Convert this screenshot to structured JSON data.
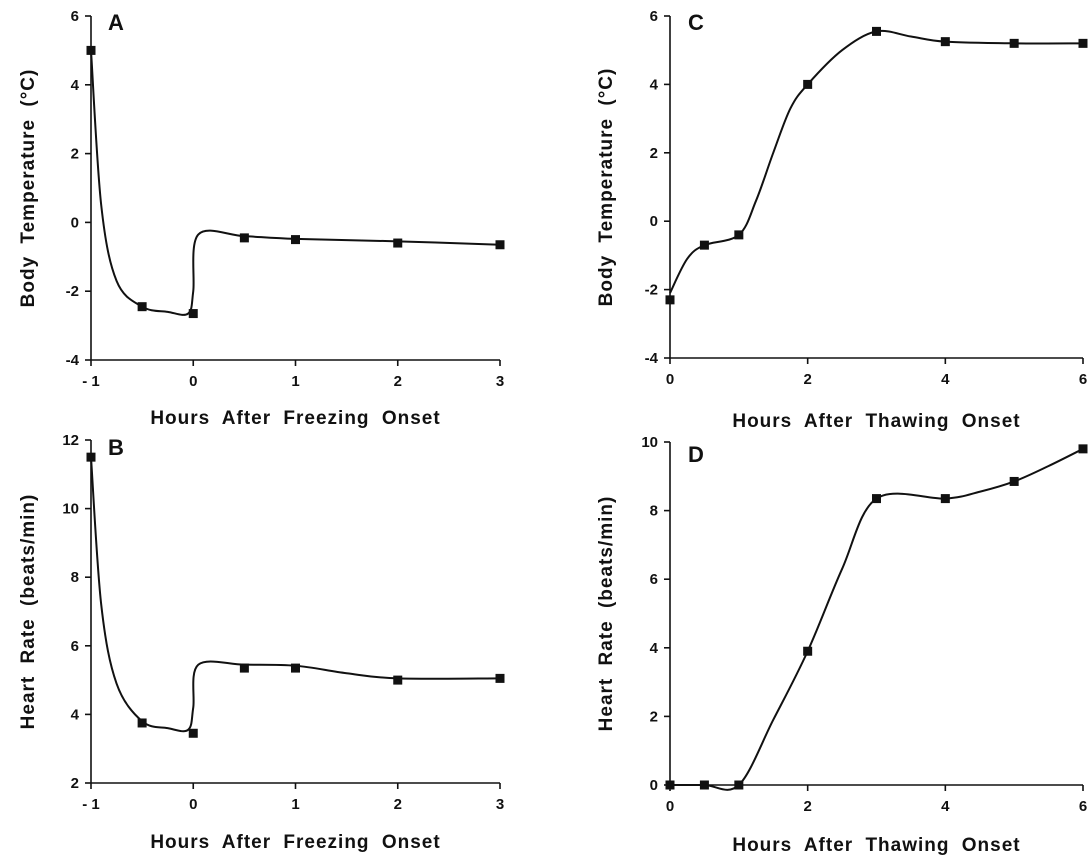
{
  "colors": {
    "ink": "#111111",
    "background": "#ffffff"
  },
  "chart_data": [
    {
      "id": "A",
      "type": "line",
      "panel_label": "A",
      "xlabel": "Hours After Freezing Onset",
      "ylabel": "Body Temperature (°C)",
      "xlim": [
        -1,
        3
      ],
      "ylim": [
        -4,
        6
      ],
      "x_ticks": [
        -1,
        0,
        1,
        2,
        3
      ],
      "x_tick_labels": [
        "- 1",
        "0",
        "1",
        "2",
        "3"
      ],
      "y_ticks": [
        -4,
        -2,
        0,
        2,
        4,
        6
      ],
      "y_tick_labels": [
        "-4",
        "-2",
        "0",
        "2",
        "4",
        "6"
      ],
      "grid": false,
      "points": {
        "x": [
          -1,
          -0.5,
          0,
          0.5,
          1,
          2,
          3
        ],
        "y": [
          5.0,
          -2.45,
          -2.65,
          -0.45,
          -0.5,
          -0.6,
          -0.65
        ]
      },
      "curve": {
        "x": [
          -1,
          -0.9,
          -0.75,
          -0.5,
          -0.25,
          -0.05,
          0,
          0.05,
          0.5,
          1,
          2,
          3
        ],
        "y": [
          5.0,
          0.5,
          -1.7,
          -2.45,
          -2.6,
          -2.65,
          -2.0,
          -0.35,
          -0.4,
          -0.48,
          -0.55,
          -0.65
        ]
      }
    },
    {
      "id": "B",
      "type": "line",
      "panel_label": "B",
      "xlabel": "Hours After Freezing Onset",
      "ylabel": "Heart Rate (beats/min)",
      "xlim": [
        -1,
        3
      ],
      "ylim": [
        2,
        12
      ],
      "x_ticks": [
        -1,
        0,
        1,
        2,
        3
      ],
      "x_tick_labels": [
        "- 1",
        "0",
        "1",
        "2",
        "3"
      ],
      "y_ticks": [
        2,
        4,
        6,
        8,
        10,
        12
      ],
      "y_tick_labels": [
        "2",
        "4",
        "6",
        "8",
        "10",
        "12"
      ],
      "grid": false,
      "points": {
        "x": [
          -1,
          -0.5,
          0,
          0.5,
          1,
          2,
          3
        ],
        "y": [
          11.5,
          3.75,
          3.45,
          5.35,
          5.35,
          5.0,
          5.05
        ]
      },
      "curve": {
        "x": [
          -1,
          -0.9,
          -0.75,
          -0.5,
          -0.25,
          -0.05,
          0,
          0.05,
          0.5,
          1,
          1.5,
          2,
          3
        ],
        "y": [
          11.5,
          7.2,
          4.9,
          3.8,
          3.6,
          3.55,
          4.2,
          5.45,
          5.45,
          5.42,
          5.2,
          5.05,
          5.05
        ]
      }
    },
    {
      "id": "C",
      "type": "line",
      "panel_label": "C",
      "xlabel": "Hours After Thawing Onset",
      "ylabel": "Body Temperature (°C)",
      "xlim": [
        0,
        6
      ],
      "ylim": [
        -4,
        6
      ],
      "x_ticks": [
        0,
        2,
        4,
        6
      ],
      "x_tick_labels": [
        "0",
        "2",
        "4",
        "6"
      ],
      "y_ticks": [
        -4,
        -2,
        0,
        2,
        4,
        6
      ],
      "y_tick_labels": [
        "-4",
        "-2",
        "0",
        "2",
        "4",
        "6"
      ],
      "grid": false,
      "points": {
        "x": [
          0,
          0.5,
          1,
          2,
          3,
          4,
          5,
          6
        ],
        "y": [
          -2.3,
          -0.7,
          -0.4,
          4.0,
          5.55,
          5.25,
          5.2,
          5.2
        ]
      },
      "curve": {
        "x": [
          0,
          0.25,
          0.5,
          1,
          1.25,
          1.5,
          1.75,
          2,
          2.5,
          3,
          3.5,
          4,
          5,
          6
        ],
        "y": [
          -2.1,
          -1.1,
          -0.7,
          -0.4,
          0.6,
          2.0,
          3.3,
          4.0,
          5.0,
          5.55,
          5.4,
          5.25,
          5.2,
          5.2
        ]
      }
    },
    {
      "id": "D",
      "type": "line",
      "panel_label": "D",
      "xlabel": "Hours After Thawing Onset",
      "ylabel": "Heart Rate (beats/min)",
      "xlim": [
        0,
        6
      ],
      "ylim": [
        0,
        10
      ],
      "x_ticks": [
        0,
        2,
        4,
        6
      ],
      "x_tick_labels": [
        "0",
        "2",
        "4",
        "6"
      ],
      "y_ticks": [
        0,
        2,
        4,
        6,
        8,
        10
      ],
      "y_tick_labels": [
        "0",
        "2",
        "4",
        "6",
        "8",
        "10"
      ],
      "grid": false,
      "points": {
        "x": [
          0,
          0.5,
          1,
          2,
          3,
          4,
          5,
          6
        ],
        "y": [
          0,
          0,
          0,
          3.9,
          8.35,
          8.35,
          8.85,
          9.8
        ]
      },
      "curve": {
        "x": [
          0,
          0.5,
          1,
          1.5,
          2,
          2.5,
          3,
          4,
          4.5,
          5,
          5.5,
          6
        ],
        "y": [
          0,
          0,
          0,
          1.9,
          3.9,
          6.3,
          8.35,
          8.35,
          8.55,
          8.85,
          9.3,
          9.8
        ]
      }
    }
  ]
}
